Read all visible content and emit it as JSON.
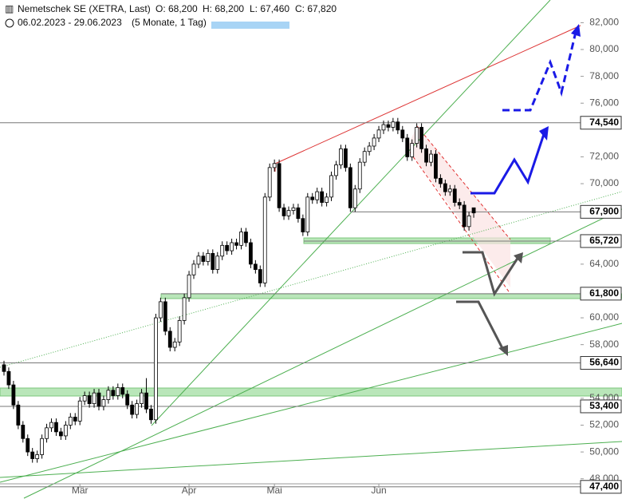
{
  "chart_data": {
    "type": "candlestick",
    "title": "Nemetschek SE (XETRA, Last)",
    "ohlc_text": [
      "O: 68,200",
      "H: 68,200",
      "L: 67,460",
      "C: 67,820"
    ],
    "period": "06.02.2023 - 29.06.2023",
    "period_note": "(5 Monate, 1 Tag)",
    "up_color": "#ffffff",
    "down_color": "#000000",
    "ylim": [
      47,
      82.5
    ],
    "yticks": [
      {
        "value": 48,
        "label": "48,000"
      },
      {
        "value": 50,
        "label": "50,000"
      },
      {
        "value": 52,
        "label": "52,000"
      },
      {
        "value": 54,
        "label": "54,000"
      },
      {
        "value": 58,
        "label": "58,000"
      },
      {
        "value": 60,
        "label": "60,000"
      },
      {
        "value": 64,
        "label": "64,000"
      },
      {
        "value": 70,
        "label": "70,000"
      },
      {
        "value": 72,
        "label": "72,000"
      },
      {
        "value": 76,
        "label": "76,000"
      },
      {
        "value": 78,
        "label": "78,000"
      },
      {
        "value": 80,
        "label": "80,000"
      },
      {
        "value": 82,
        "label": "82,000"
      }
    ],
    "xticks": [
      {
        "value": 16,
        "label": "Mär"
      },
      {
        "value": 39,
        "label": "Apr"
      },
      {
        "value": 57,
        "label": "Mai"
      },
      {
        "value": 79,
        "label": "Jun"
      }
    ],
    "levels": [
      {
        "value": 74.54,
        "label": "74,540"
      },
      {
        "value": 67.9,
        "label": "67,900"
      },
      {
        "value": 65.72,
        "label": "65,720"
      },
      {
        "value": 61.8,
        "label": "61,800"
      },
      {
        "value": 56.64,
        "label": "56,640"
      },
      {
        "value": 53.4,
        "label": "53,400"
      },
      {
        "value": 47.4,
        "label": "47,400"
      }
    ],
    "ohlc": [
      [
        56.5,
        56.8,
        55.7,
        56.0
      ],
      [
        56.0,
        56.3,
        54.7,
        55.0
      ],
      [
        55.0,
        55.3,
        53.2,
        53.5
      ],
      [
        53.5,
        53.8,
        51.7,
        52.0
      ],
      [
        52.0,
        52.3,
        50.7,
        51.0
      ],
      [
        51.0,
        51.3,
        49.7,
        50.0
      ],
      [
        50.0,
        50.3,
        49.2,
        49.5
      ],
      [
        49.5,
        50.1,
        49.2,
        49.8
      ],
      [
        49.8,
        51.3,
        49.5,
        51.0
      ],
      [
        51.0,
        52.1,
        50.7,
        51.8
      ],
      [
        51.8,
        52.5,
        51.5,
        52.2
      ],
      [
        52.2,
        52.5,
        51.2,
        51.5
      ],
      [
        51.5,
        51.8,
        50.9,
        51.2
      ],
      [
        51.2,
        52.3,
        50.9,
        52.0
      ],
      [
        52.0,
        52.9,
        51.7,
        52.6
      ],
      [
        52.6,
        52.9,
        52.0,
        52.3
      ],
      [
        52.3,
        54.1,
        52.0,
        53.8
      ],
      [
        53.8,
        54.5,
        53.5,
        54.2
      ],
      [
        54.2,
        54.5,
        53.3,
        53.6
      ],
      [
        53.6,
        54.7,
        53.3,
        54.4
      ],
      [
        54.4,
        54.7,
        53.1,
        53.4
      ],
      [
        53.4,
        54.2,
        53.1,
        53.9
      ],
      [
        53.9,
        54.9,
        53.6,
        54.6
      ],
      [
        54.6,
        54.9,
        53.9,
        54.2
      ],
      [
        54.2,
        55.1,
        53.9,
        54.8
      ],
      [
        54.8,
        55.1,
        54.0,
        54.3
      ],
      [
        54.3,
        54.6,
        53.2,
        53.5
      ],
      [
        53.5,
        53.8,
        52.5,
        52.8
      ],
      [
        52.8,
        53.9,
        52.5,
        53.6
      ],
      [
        53.6,
        54.7,
        53.3,
        54.4
      ],
      [
        54.4,
        55.5,
        52.9,
        53.2
      ],
      [
        53.2,
        53.5,
        52.1,
        52.4
      ],
      [
        52.4,
        60.3,
        52.1,
        60.0
      ],
      [
        60.0,
        61.5,
        59.7,
        61.2
      ],
      [
        61.2,
        61.5,
        58.7,
        59.0
      ],
      [
        59.0,
        59.3,
        57.5,
        57.8
      ],
      [
        57.8,
        58.5,
        57.5,
        58.2
      ],
      [
        58.2,
        60.1,
        57.9,
        59.8
      ],
      [
        59.8,
        61.8,
        59.5,
        61.5
      ],
      [
        61.5,
        63.5,
        61.2,
        63.2
      ],
      [
        63.2,
        64.3,
        62.9,
        64.0
      ],
      [
        64.0,
        64.9,
        63.7,
        64.6
      ],
      [
        64.6,
        64.9,
        63.9,
        64.2
      ],
      [
        64.2,
        65.1,
        63.9,
        64.8
      ],
      [
        64.8,
        65.1,
        63.3,
        63.6
      ],
      [
        63.6,
        64.9,
        63.3,
        64.6
      ],
      [
        64.6,
        65.7,
        64.3,
        65.4
      ],
      [
        65.4,
        65.7,
        64.7,
        65.0
      ],
      [
        65.0,
        65.9,
        64.7,
        65.6
      ],
      [
        65.6,
        65.9,
        65.1,
        65.4
      ],
      [
        65.4,
        66.7,
        65.1,
        66.4
      ],
      [
        66.4,
        66.7,
        65.3,
        65.6
      ],
      [
        65.6,
        65.9,
        63.7,
        64.0
      ],
      [
        64.0,
        64.3,
        63.3,
        63.6
      ],
      [
        63.6,
        63.9,
        62.3,
        62.6
      ],
      [
        62.6,
        69.3,
        62.3,
        69.0
      ],
      [
        69.0,
        71.5,
        68.7,
        71.2
      ],
      [
        71.2,
        71.8,
        70.9,
        71.5
      ],
      [
        71.5,
        71.8,
        67.9,
        68.2
      ],
      [
        68.2,
        68.5,
        67.3,
        67.6
      ],
      [
        67.6,
        68.3,
        67.3,
        68.0
      ],
      [
        68.0,
        68.5,
        67.7,
        68.2
      ],
      [
        68.2,
        68.5,
        67.1,
        67.4
      ],
      [
        67.4,
        67.7,
        66.1,
        66.4
      ],
      [
        66.4,
        69.3,
        66.1,
        69.0
      ],
      [
        69.0,
        69.3,
        68.5,
        68.8
      ],
      [
        68.8,
        69.7,
        68.5,
        69.4
      ],
      [
        69.4,
        69.7,
        68.3,
        68.6
      ],
      [
        68.6,
        69.3,
        68.3,
        69.0
      ],
      [
        69.0,
        70.9,
        68.7,
        70.6
      ],
      [
        70.6,
        71.7,
        70.3,
        71.4
      ],
      [
        71.4,
        72.9,
        71.1,
        72.6
      ],
      [
        72.6,
        72.9,
        70.9,
        71.2
      ],
      [
        71.2,
        71.5,
        67.9,
        68.2
      ],
      [
        68.2,
        69.9,
        67.9,
        69.6
      ],
      [
        69.6,
        71.9,
        69.3,
        71.6
      ],
      [
        71.6,
        72.7,
        71.3,
        72.4
      ],
      [
        72.4,
        73.1,
        72.1,
        72.8
      ],
      [
        72.8,
        73.7,
        72.5,
        73.4
      ],
      [
        73.4,
        74.3,
        73.1,
        74.0
      ],
      [
        74.0,
        74.7,
        73.7,
        74.4
      ],
      [
        74.4,
        74.7,
        73.9,
        74.2
      ],
      [
        74.2,
        74.9,
        73.9,
        74.6
      ],
      [
        74.6,
        74.9,
        73.7,
        74.0
      ],
      [
        74.0,
        74.3,
        73.1,
        73.4
      ],
      [
        73.4,
        73.7,
        71.7,
        72.0
      ],
      [
        72.0,
        73.3,
        71.7,
        73.0
      ],
      [
        73.0,
        74.5,
        72.7,
        74.2
      ],
      [
        74.2,
        74.5,
        72.3,
        72.6
      ],
      [
        72.6,
        72.9,
        71.3,
        71.6
      ],
      [
        71.6,
        72.5,
        71.3,
        72.2
      ],
      [
        72.2,
        72.5,
        70.1,
        70.4
      ],
      [
        70.4,
        70.7,
        69.7,
        70.0
      ],
      [
        70.0,
        70.3,
        69.1,
        69.4
      ],
      [
        69.4,
        69.9,
        69.1,
        69.6
      ],
      [
        69.6,
        69.9,
        68.3,
        68.6
      ],
      [
        68.6,
        68.9,
        68.1,
        68.4
      ],
      [
        68.4,
        68.7,
        66.5,
        66.8
      ],
      [
        66.8,
        67.9,
        66.5,
        67.6
      ],
      [
        68.2,
        68.2,
        67.46,
        67.82
      ]
    ]
  }
}
